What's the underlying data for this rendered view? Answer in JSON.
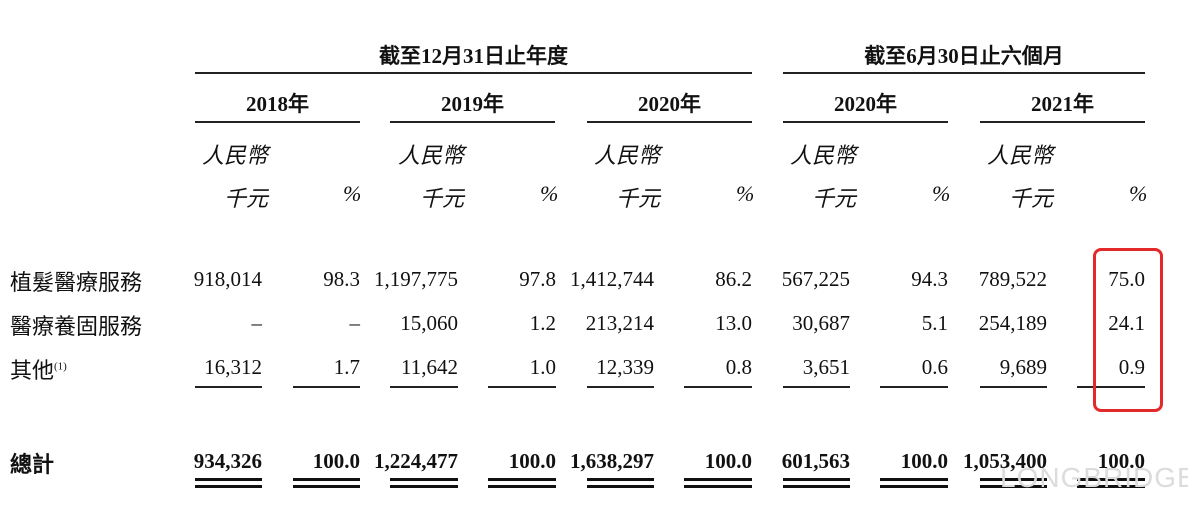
{
  "header": {
    "group1": "截至12月31日止年度",
    "group2": "截至6月30日止六個月",
    "years": [
      "2018年",
      "2019年",
      "2020年",
      "2020年",
      "2021年"
    ],
    "currency": "人民幣",
    "unit": "千元",
    "pct": "%"
  },
  "rows": [
    {
      "label": "植髮醫療服務",
      "values": [
        "918,014",
        "98.3",
        "1,197,775",
        "97.8",
        "1,412,744",
        "86.2",
        "567,225",
        "94.3",
        "789,522",
        "75.0"
      ]
    },
    {
      "label": "醫療養固服務",
      "values": [
        "–",
        "–",
        "15,060",
        "1.2",
        "213,214",
        "13.0",
        "30,687",
        "5.1",
        "254,189",
        "24.1"
      ]
    },
    {
      "label": "其他",
      "footnote": "(1)",
      "values": [
        "16,312",
        "1.7",
        "11,642",
        "1.0",
        "12,339",
        "0.8",
        "3,651",
        "0.6",
        "9,689",
        "0.9"
      ]
    }
  ],
  "total": {
    "label": "總計",
    "values": [
      "934,326",
      "100.0",
      "1,224,477",
      "100.0",
      "1,638,297",
      "100.0",
      "601,563",
      "100.0",
      "1,053,400",
      "100.0"
    ]
  },
  "highlight": {
    "color": "#e22a2a",
    "target": "2021 % column"
  },
  "watermark": "LONGBRIDGE"
}
